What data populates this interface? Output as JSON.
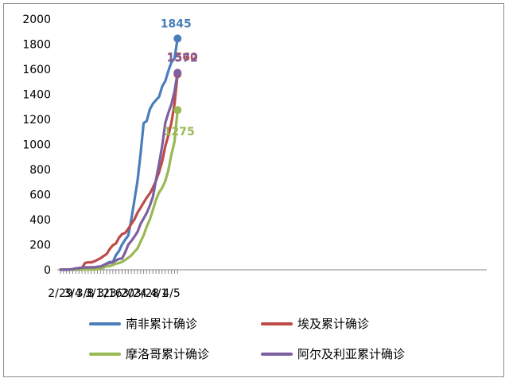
{
  "chart_data": {
    "type": "line",
    "title": "",
    "xlabel": "",
    "ylabel": "",
    "ylim": [
      0,
      2000
    ],
    "yticks": [
      0,
      200,
      400,
      600,
      800,
      1000,
      1200,
      1400,
      1600,
      1800,
      2000
    ],
    "x_tick_labels": [
      "2/29",
      "3/4",
      "3/8",
      "3/12",
      "3/16",
      "3/20",
      "3/24",
      "3/28",
      "4/1",
      "4/5"
    ],
    "x": [
      "2/29",
      "3/1",
      "3/2",
      "3/3",
      "3/4",
      "3/5",
      "3/6",
      "3/7",
      "3/8",
      "3/9",
      "3/10",
      "3/11",
      "3/12",
      "3/13",
      "3/14",
      "3/15",
      "3/16",
      "3/17",
      "3/18",
      "3/19",
      "3/20",
      "3/21",
      "3/22",
      "3/23",
      "3/24",
      "3/25",
      "3/26",
      "3/27",
      "3/28",
      "3/29",
      "3/30",
      "3/31",
      "4/1",
      "4/2",
      "4/3",
      "4/4",
      "4/5",
      "4/6",
      "4/7"
    ],
    "grid": false,
    "legend_position": "bottom",
    "series": [
      {
        "name": "南非累计确诊",
        "color": "#4a7ebb",
        "end_label": "1845",
        "values": [
          0,
          0,
          0,
          0,
          1,
          1,
          1,
          3,
          3,
          7,
          7,
          13,
          17,
          24,
          38,
          51,
          62,
          62,
          116,
          150,
          202,
          240,
          274,
          402,
          554,
          709,
          927,
          1170,
          1187,
          1280,
          1326,
          1353,
          1380,
          1462,
          1505,
          1585,
          1655,
          1686,
          1845
        ]
      },
      {
        "name": "埃及累计确诊",
        "color": "#be4b48",
        "end_label": "1560",
        "values": [
          2,
          2,
          2,
          2,
          3,
          3,
          15,
          15,
          55,
          59,
          59,
          67,
          80,
          93,
          110,
          126,
          166,
          196,
          210,
          256,
          285,
          294,
          327,
          366,
          402,
          456,
          495,
          536,
          576,
          609,
          656,
          710,
          779,
          865,
          985,
          1070,
          1173,
          1322,
          1560
        ]
      },
      {
        "name": "摩洛哥累计确诊",
        "color": "#98b954",
        "end_label": "1275",
        "values": [
          0,
          0,
          0,
          1,
          1,
          1,
          1,
          2,
          2,
          2,
          2,
          3,
          6,
          7,
          18,
          28,
          29,
          38,
          49,
          54,
          63,
          79,
          96,
          115,
          143,
          170,
          225,
          275,
          345,
          402,
          479,
          556,
          617,
          654,
          708,
          791,
          919,
          1021,
          1275
        ]
      },
      {
        "name": "阿尔及利亚累计确诊",
        "color": "#7d60a0",
        "end_label": "1572",
        "values": [
          1,
          1,
          1,
          3,
          5,
          12,
          12,
          17,
          19,
          19,
          20,
          20,
          24,
          26,
          37,
          48,
          54,
          60,
          74,
          87,
          90,
          139,
          201,
          230,
          264,
          302,
          367,
          409,
          454,
          511,
          584,
          716,
          847,
          986,
          1171,
          1251,
          1320,
          1423,
          1572
        ]
      }
    ]
  }
}
